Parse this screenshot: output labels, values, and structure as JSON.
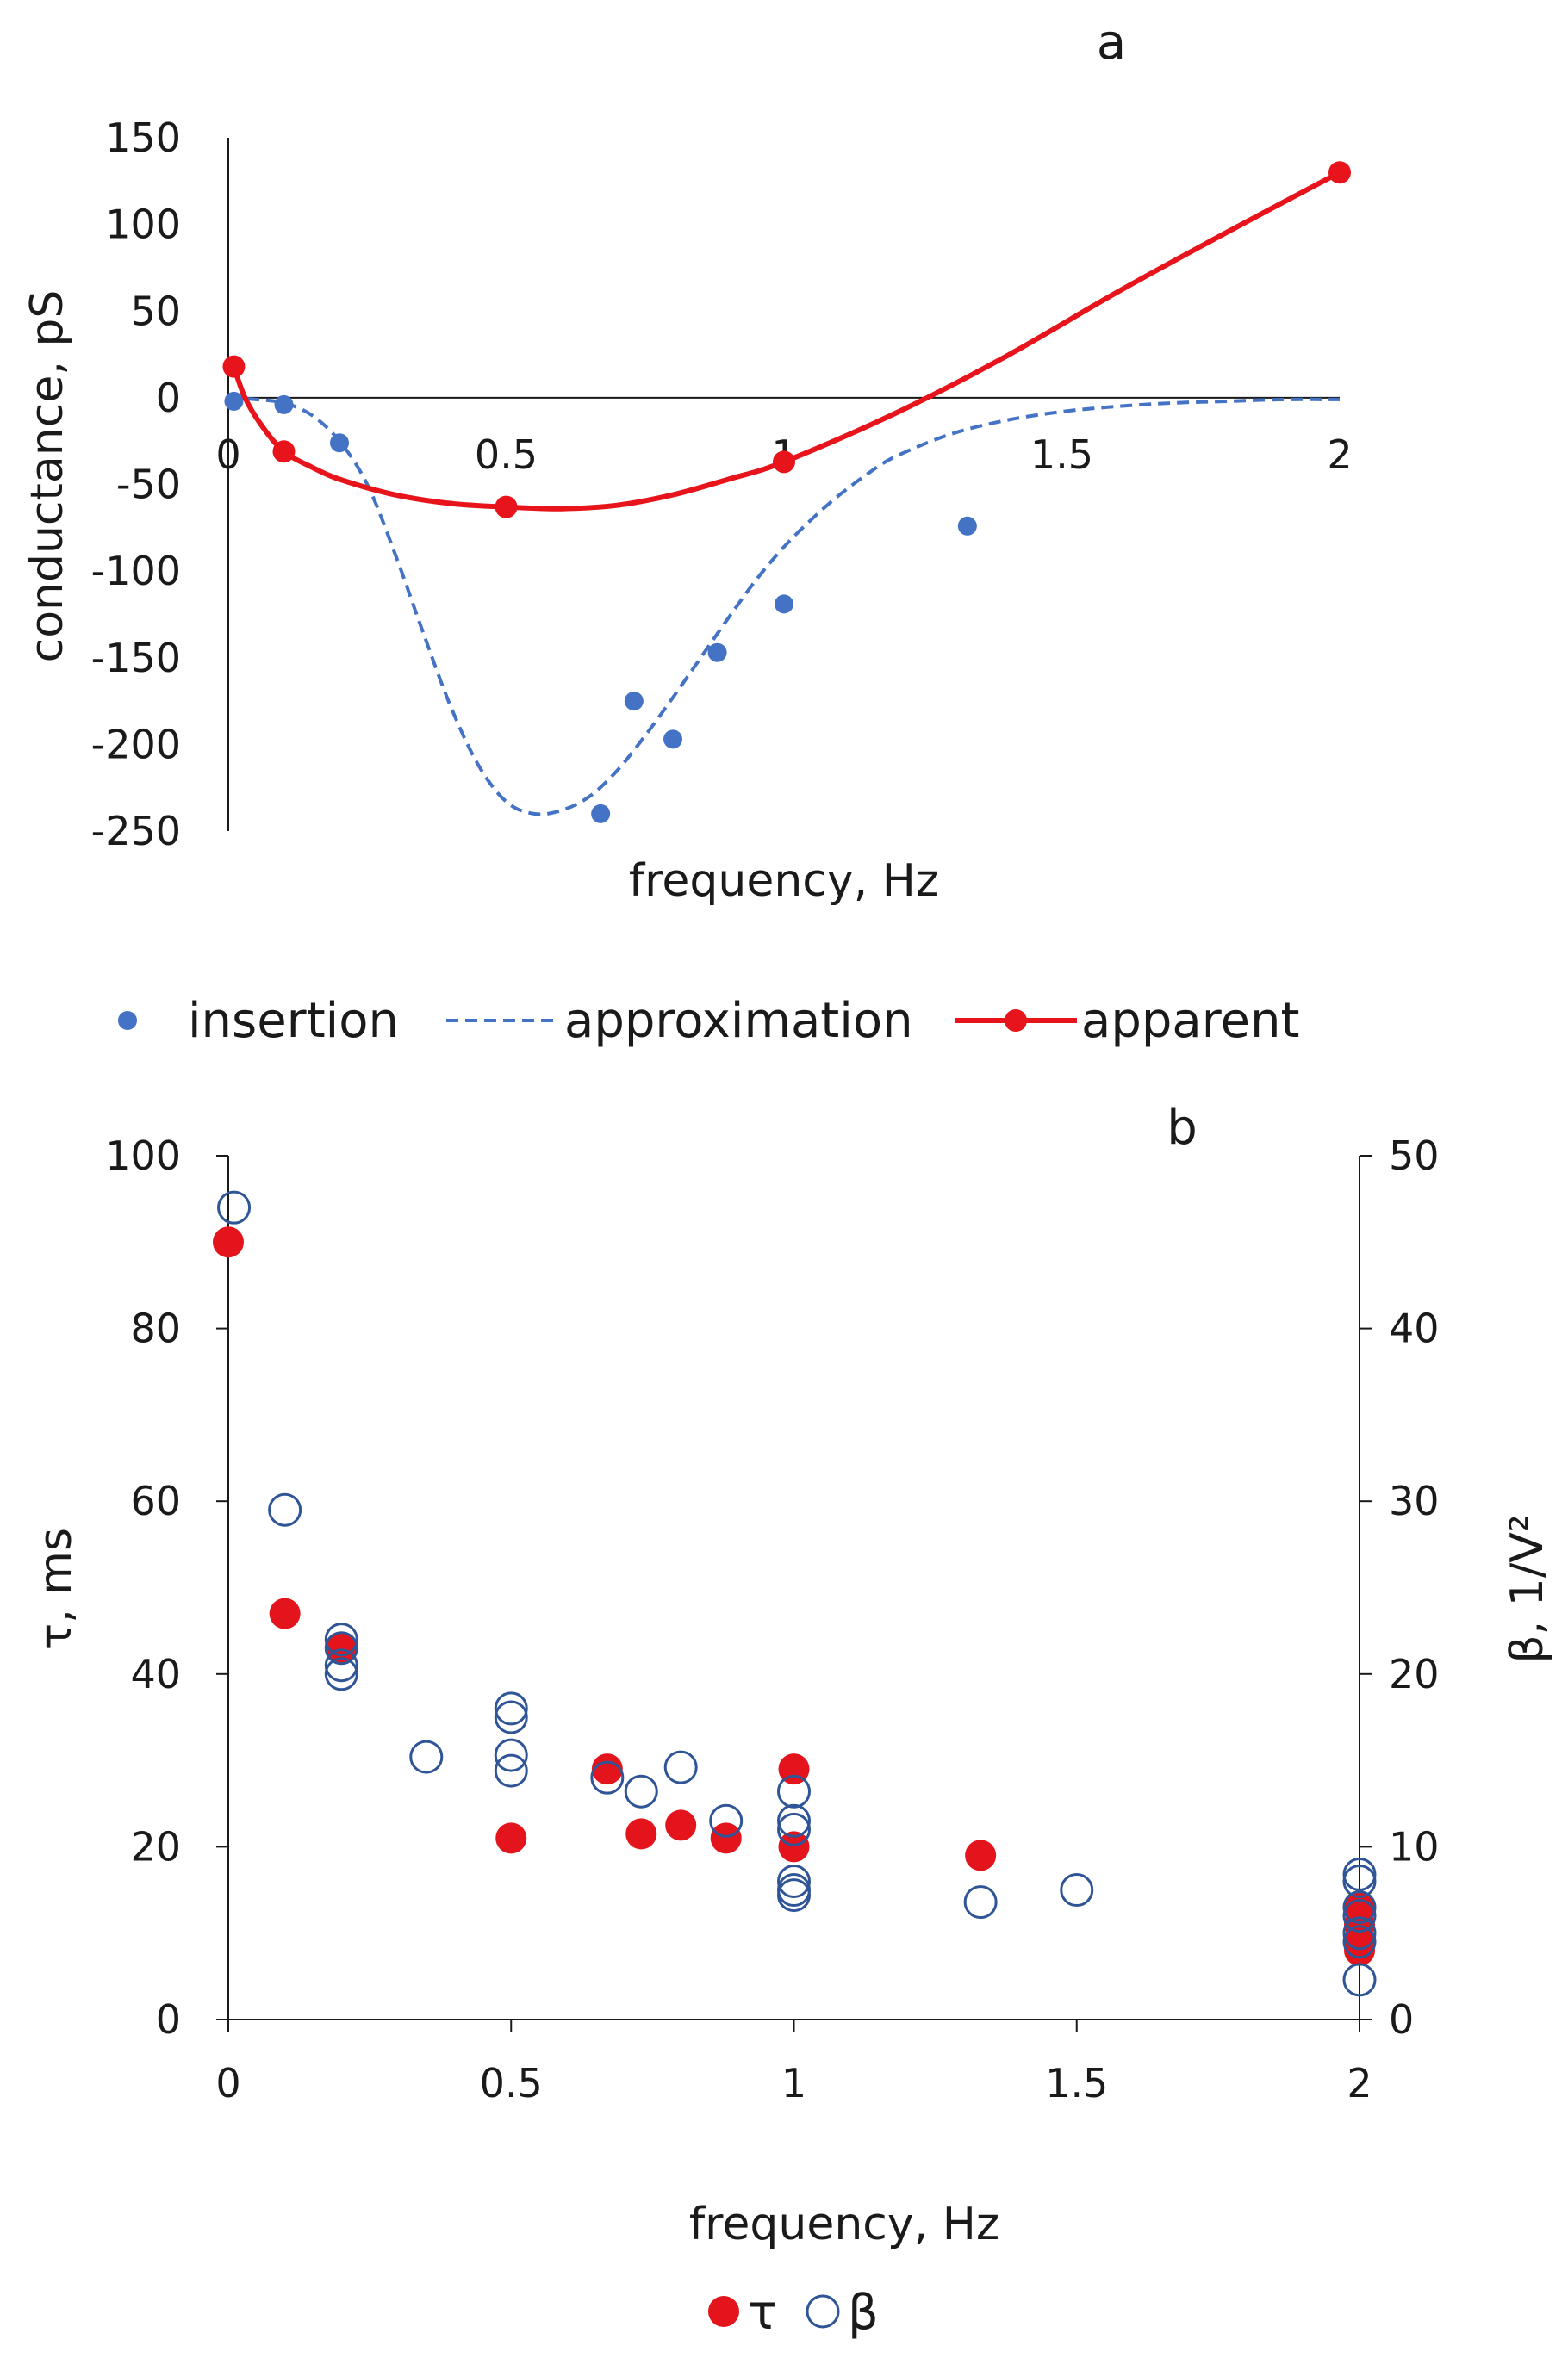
{
  "chart_data": [
    {
      "panel_label": "a",
      "type": "scatter",
      "xlabel": "frequency, Hz",
      "ylabel": "conductance, pS",
      "xlim": [
        0,
        2
      ],
      "ylim": [
        -250,
        150
      ],
      "xticks": [
        0,
        0.5,
        1,
        1.5,
        2
      ],
      "xtick_labels": [
        "0",
        "0.5",
        "1",
        "1.5",
        "2"
      ],
      "yticks": [
        150,
        100,
        50,
        0,
        -50,
        -100,
        -150,
        -200,
        -250
      ],
      "ytick_labels": [
        "150",
        "100",
        "50",
        "0",
        "-50",
        "-100",
        "-150",
        "-200",
        "-250"
      ],
      "series": [
        {
          "name": "insertion",
          "style": "markers",
          "color": "#4472c4",
          "x": [
            0.01,
            0.1,
            0.2,
            0.67,
            0.73,
            0.8,
            0.88,
            1.0,
            1.33
          ],
          "y": [
            -2,
            -4,
            -26,
            -240,
            -175,
            -197,
            -147,
            -119,
            -74
          ]
        },
        {
          "name": "approximation",
          "style": "dashed",
          "color": "#4472c4",
          "x": [
            0.0,
            0.05,
            0.1,
            0.15,
            0.2,
            0.25,
            0.3,
            0.35,
            0.4,
            0.45,
            0.5,
            0.55,
            0.6,
            0.65,
            0.7,
            0.75,
            0.8,
            0.85,
            0.9,
            0.95,
            1.0,
            1.05,
            1.1,
            1.15,
            1.2,
            1.3,
            1.4,
            1.5,
            1.6,
            1.7,
            1.8,
            1.9,
            2.0
          ],
          "y": [
            0,
            -1,
            -3,
            -10,
            -25,
            -50,
            -90,
            -135,
            -178,
            -212,
            -233,
            -240,
            -238,
            -230,
            -215,
            -195,
            -173,
            -150,
            -127,
            -105,
            -86,
            -70,
            -56,
            -44,
            -34,
            -21,
            -13,
            -8,
            -5,
            -3,
            -2,
            -1,
            -1
          ]
        },
        {
          "name": "apparent",
          "style": "line-markers",
          "color": "#e8141b",
          "x": [
            0.01,
            0.1,
            0.5,
            1.0,
            2.0
          ],
          "y": [
            18,
            -31,
            -63,
            -37,
            130
          ]
        }
      ],
      "legend_position": "bottom"
    },
    {
      "panel_label": "b",
      "type": "scatter",
      "xlabel": "frequency, Hz",
      "ylabel": "τ, ms",
      "y2label": "β, 1/V²",
      "xlim": [
        0,
        2
      ],
      "ylim": [
        0,
        100
      ],
      "y2lim": [
        0,
        50
      ],
      "xticks": [
        0,
        0.5,
        1,
        1.5,
        2
      ],
      "xtick_labels": [
        "0",
        "0.5",
        "1",
        "1.5",
        "2"
      ],
      "yticks": [
        0,
        20,
        40,
        60,
        80,
        100
      ],
      "ytick_labels": [
        "0",
        "20",
        "40",
        "60",
        "80",
        "100"
      ],
      "y2ticks": [
        0,
        10,
        20,
        30,
        40,
        50
      ],
      "y2tick_labels": [
        "0",
        "10",
        "20",
        "30",
        "40",
        "50"
      ],
      "series": [
        {
          "name": "β",
          "axis": "right",
          "style": "open-circles",
          "color": "#2f5597",
          "x": [
            0.01,
            0.1,
            0.2,
            0.2,
            0.2,
            0.2,
            0.35,
            0.5,
            0.5,
            0.5,
            0.5,
            0.67,
            0.73,
            0.8,
            0.88,
            1.0,
            1.0,
            1.0,
            1.0,
            1.0,
            1.0,
            1.33,
            1.5,
            2.0,
            2.0,
            2.0,
            2.0,
            2.0,
            2.0,
            2.0
          ],
          "y": [
            47,
            29.5,
            22,
            21.5,
            20.5,
            20,
            15.2,
            18,
            17.5,
            15.3,
            14.4,
            14,
            13.2,
            14.6,
            11.5,
            13.2,
            11.5,
            11,
            8,
            7.5,
            7.2,
            6.8,
            7.5,
            8.4,
            8,
            6.5,
            6,
            5,
            4.5,
            2.3
          ]
        },
        {
          "name": "τ",
          "axis": "left",
          "style": "filled-circles",
          "color": "#e3141b",
          "x": [
            0.0,
            0.1,
            0.2,
            0.5,
            0.67,
            0.73,
            0.8,
            0.88,
            1.0,
            1.0,
            1.33,
            2.0,
            2.0,
            2.0,
            2.0
          ],
          "y": [
            90,
            47,
            43,
            21,
            29,
            21.5,
            22.5,
            21,
            29,
            20,
            19,
            13,
            11,
            9,
            8
          ]
        }
      ],
      "legend_position": "bottom"
    }
  ]
}
